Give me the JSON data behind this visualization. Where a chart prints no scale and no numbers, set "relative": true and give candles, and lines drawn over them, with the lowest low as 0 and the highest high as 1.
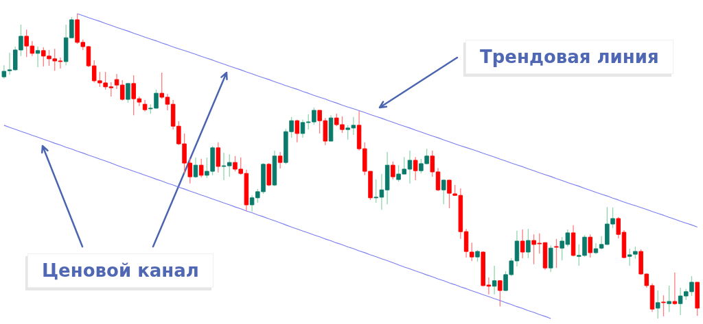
{
  "chart_data": {
    "type": "candlestick",
    "relative": true,
    "categories": [
      null,
      null,
      null,
      null,
      null,
      null,
      null,
      null,
      null,
      null,
      null,
      null,
      null,
      null,
      null,
      null,
      null,
      null,
      null,
      null,
      null,
      null,
      null,
      null,
      null,
      null,
      null,
      null,
      null,
      null,
      null,
      null,
      null,
      null,
      null,
      null,
      null,
      null,
      null,
      null,
      null,
      null,
      null,
      null,
      null,
      null,
      null,
      null,
      null,
      null,
      null,
      null,
      null,
      null,
      null,
      null,
      null,
      null,
      null,
      null,
      null,
      null,
      null,
      null,
      null,
      null,
      null,
      null,
      null,
      null,
      null,
      null,
      null,
      null,
      null,
      null,
      null,
      null,
      null,
      null,
      null,
      null,
      null,
      null,
      null,
      null,
      null,
      null,
      null,
      null,
      null,
      null,
      null,
      null,
      null,
      null,
      null,
      null,
      null,
      null,
      null,
      null,
      null,
      null,
      null,
      null,
      null,
      null,
      null,
      null,
      null,
      null,
      null,
      null,
      null,
      null,
      null,
      null,
      null,
      null,
      null,
      null,
      null,
      null
    ],
    "ohlc": [
      [
        0.793,
        0.831,
        0.787,
        0.811
      ],
      [
        0.813,
        0.872,
        0.8,
        0.816
      ],
      [
        0.816,
        0.892,
        0.813,
        0.881
      ],
      [
        0.881,
        0.964,
        0.861,
        0.926
      ],
      [
        0.926,
        0.948,
        0.858,
        0.894
      ],
      [
        0.894,
        0.91,
        0.861,
        0.87
      ],
      [
        0.87,
        0.892,
        0.825,
        0.879
      ],
      [
        0.879,
        0.89,
        0.827,
        0.861
      ],
      [
        0.861,
        0.881,
        0.829,
        0.852
      ],
      [
        0.852,
        0.885,
        0.813,
        0.845
      ],
      [
        0.845,
        0.856,
        0.82,
        0.843
      ],
      [
        0.843,
        0.964,
        0.831,
        0.921
      ],
      [
        0.921,
        0.989,
        0.921,
        0.98
      ],
      [
        0.98,
        1,
        0.901,
        0.906
      ],
      [
        0.906,
        0.915,
        0.881,
        0.892
      ],
      [
        0.892,
        0.894,
        0.825,
        0.829
      ],
      [
        0.829,
        0.847,
        0.775,
        0.78
      ],
      [
        0.78,
        0.809,
        0.76,
        0.773
      ],
      [
        0.773,
        0.809,
        0.751,
        0.76
      ],
      [
        0.76,
        0.775,
        0.728,
        0.757
      ],
      [
        0.784,
        0.802,
        0.753,
        0.766
      ],
      [
        0.766,
        0.782,
        0.715,
        0.719
      ],
      [
        0.719,
        0.771,
        0.708,
        0.771
      ],
      [
        0.771,
        0.798,
        0.667,
        0.721
      ],
      [
        0.721,
        0.728,
        0.697,
        0.71
      ],
      [
        0.703,
        0.717,
        0.679,
        0.685
      ],
      [
        0.688,
        0.703,
        0.672,
        0.69
      ],
      [
        0.69,
        0.751,
        0.69,
        0.739
      ],
      [
        0.739,
        0.807,
        0.721,
        0.726
      ],
      [
        0.726,
        0.737,
        0.683,
        0.703
      ],
      [
        0.703,
        0.717,
        0.62,
        0.631
      ],
      [
        0.631,
        0.647,
        0.569,
        0.573
      ],
      [
        0.573,
        0.607,
        0.476,
        0.51
      ],
      [
        0.51,
        0.524,
        0.443,
        0.465
      ],
      [
        0.465,
        0.528,
        0.461,
        0.503
      ],
      [
        0.503,
        0.524,
        0.463,
        0.47
      ],
      [
        0.47,
        0.528,
        0.461,
        0.483
      ],
      [
        0.483,
        0.566,
        0.47,
        0.56
      ],
      [
        0.56,
        0.578,
        0.479,
        0.499
      ],
      [
        0.499,
        0.544,
        0.454,
        0.501
      ],
      [
        0.501,
        0.539,
        0.465,
        0.512
      ],
      [
        0.512,
        0.533,
        0.483,
        0.49
      ],
      [
        0.49,
        0.528,
        0.472,
        0.476
      ],
      [
        0.476,
        0.488,
        0.353,
        0.373
      ],
      [
        0.373,
        0.404,
        0.351,
        0.396
      ],
      [
        0.396,
        0.425,
        0.38,
        0.416
      ],
      [
        0.416,
        0.51,
        0.409,
        0.506
      ],
      [
        0.506,
        0.51,
        0.434,
        0.438
      ],
      [
        0.438,
        0.551,
        0.434,
        0.533
      ],
      [
        0.533,
        0.546,
        0.492,
        0.512
      ],
      [
        0.512,
        0.622,
        0.506,
        0.613
      ],
      [
        0.613,
        0.661,
        0.593,
        0.649
      ],
      [
        0.649,
        0.652,
        0.578,
        0.607
      ],
      [
        0.607,
        0.652,
        0.593,
        0.643
      ],
      [
        0.643,
        0.67,
        0.62,
        0.645
      ],
      [
        0.645,
        0.692,
        0.636,
        0.683
      ],
      [
        0.683,
        0.683,
        0.607,
        0.649
      ],
      [
        0.649,
        0.658,
        0.569,
        0.582
      ],
      [
        0.582,
        0.667,
        0.582,
        0.658
      ],
      [
        0.658,
        0.672,
        0.631,
        0.636
      ],
      [
        0.636,
        0.663,
        0.609,
        0.62
      ],
      [
        0.62,
        0.634,
        0.587,
        0.625
      ],
      [
        0.625,
        0.661,
        0.602,
        0.634
      ],
      [
        0.634,
        0.681,
        0.551,
        0.557
      ],
      [
        0.557,
        0.578,
        0.47,
        0.483
      ],
      [
        0.483,
        0.483,
        0.389,
        0.396
      ],
      [
        0.396,
        0.456,
        0.38,
        0.398
      ],
      [
        0.398,
        0.474,
        0.357,
        0.422
      ],
      [
        0.422,
        0.546,
        0.375,
        0.503
      ],
      [
        0.503,
        0.515,
        0.456,
        0.465
      ],
      [
        0.456,
        0.503,
        0.449,
        0.474
      ],
      [
        0.474,
        0.53,
        0.474,
        0.49
      ],
      [
        0.49,
        0.551,
        0.443,
        0.519
      ],
      [
        0.519,
        0.53,
        0.454,
        0.485
      ],
      [
        0.485,
        0.524,
        0.476,
        0.508
      ],
      [
        0.508,
        0.557,
        0.506,
        0.533
      ],
      [
        0.533,
        0.551,
        0.465,
        0.481
      ],
      [
        0.481,
        0.494,
        0.418,
        0.422
      ],
      [
        0.422,
        0.456,
        0.375,
        0.454
      ],
      [
        0.454,
        0.454,
        0.362,
        0.411
      ],
      [
        0.409,
        0.438,
        0.404,
        0.404
      ],
      [
        0.404,
        0.427,
        0.261,
        0.285
      ],
      [
        0.285,
        0.294,
        0.2,
        0.22
      ],
      [
        0.218,
        0.249,
        0.189,
        0.202
      ],
      [
        0.202,
        0.225,
        0.187,
        0.22
      ],
      [
        0.218,
        0.22,
        0.106,
        0.108
      ],
      [
        0.11,
        0.135,
        0.079,
        0.106
      ],
      [
        0.106,
        0.173,
        0.079,
        0.124
      ],
      [
        0.124,
        0.126,
        0.04,
        0.092
      ],
      [
        0.092,
        0.155,
        0.09,
        0.144
      ],
      [
        0.144,
        0.198,
        0.139,
        0.189
      ],
      [
        0.189,
        0.288,
        0.171,
        0.254
      ],
      [
        0.254,
        0.292,
        0.198,
        0.218
      ],
      [
        0.218,
        0.294,
        0.198,
        0.256
      ],
      [
        0.256,
        0.276,
        0.178,
        0.243
      ],
      [
        0.247,
        0.279,
        0.213,
        0.245
      ],
      [
        0.249,
        0.249,
        0.16,
        0.166
      ],
      [
        0.166,
        0.24,
        0.153,
        0.231
      ],
      [
        0.236,
        0.261,
        0.166,
        0.234
      ],
      [
        0.231,
        0.267,
        0.191,
        0.254
      ],
      [
        0.243,
        0.292,
        0.236,
        0.281
      ],
      [
        0.281,
        0.306,
        0.204,
        0.207
      ],
      [
        0.204,
        0.243,
        0.173,
        0.207
      ],
      [
        0.207,
        0.274,
        0.202,
        0.267
      ],
      [
        0.267,
        0.276,
        0.2,
        0.216
      ],
      [
        0.216,
        0.247,
        0.211,
        0.229
      ],
      [
        0.231,
        0.27,
        0.227,
        0.243
      ],
      [
        0.243,
        0.366,
        0.243,
        0.31
      ],
      [
        0.31,
        0.364,
        0.297,
        0.328
      ],
      [
        0.328,
        0.333,
        0.263,
        0.276
      ],
      [
        0.283,
        0.29,
        0.198,
        0.2
      ],
      [
        0.204,
        0.229,
        0.173,
        0.209
      ],
      [
        0.211,
        0.236,
        0.196,
        0.22
      ],
      [
        0.22,
        0.227,
        0.144,
        0.146
      ],
      [
        0.146,
        0.148,
        0.101,
        0.108
      ],
      [
        0.108,
        0.115,
        0.022,
        0.031
      ],
      [
        0.034,
        0.092,
        0,
        0.052
      ],
      [
        0.054,
        0.076,
        0.007,
        0.052
      ],
      [
        0.049,
        0.108,
        0.022,
        0.056
      ],
      [
        0.056,
        0.151,
        0.045,
        0.049
      ],
      [
        0.049,
        0.101,
        0.011,
        0.074
      ],
      [
        0.074,
        0.097,
        0.061,
        0.088
      ],
      [
        0.088,
        0.139,
        0.074,
        0.119
      ],
      [
        0.119,
        0.119,
        0.009,
        0.034
      ]
    ],
    "series": [
      {
        "type": "line",
        "color": "#7a7cf2",
        "values": [
          null,
          null,
          null,
          null,
          null,
          null,
          null,
          null,
          null,
          null,
          null,
          null,
          null,
          1.0,
          0.994,
          0.987,
          0.981,
          0.975,
          0.968,
          0.962,
          0.955,
          0.949,
          0.943,
          0.936,
          0.93,
          0.923,
          0.917,
          0.911,
          0.904,
          0.898,
          0.891,
          0.885,
          0.879,
          0.873,
          0.867,
          0.86,
          0.854,
          0.848,
          0.841,
          0.835,
          0.828,
          0.822,
          0.816,
          0.809,
          0.803,
          0.796,
          0.79,
          0.784,
          0.777,
          0.771,
          0.764,
          0.758,
          0.752,
          0.745,
          0.739,
          0.732,
          0.726,
          0.72,
          0.713,
          0.707,
          0.7,
          0.694,
          0.688,
          0.682,
          0.676,
          0.669,
          0.663,
          0.657,
          0.65,
          0.644,
          0.637,
          0.631,
          0.625,
          0.618,
          0.612,
          0.605,
          0.599,
          0.593,
          0.586,
          0.58,
          0.573,
          0.567,
          0.561,
          0.555,
          0.549,
          0.542,
          0.536,
          0.53,
          0.523,
          0.517,
          0.51,
          0.504,
          0.498,
          0.491,
          0.485,
          0.478,
          0.472,
          0.466,
          0.459,
          0.453,
          0.446,
          0.44,
          0.434,
          0.427,
          0.421,
          0.414,
          0.408,
          0.402,
          0.395,
          0.389,
          0.382,
          0.376,
          0.37,
          0.364,
          0.358,
          0.351,
          0.345,
          0.339,
          0.332,
          0.326,
          0.319,
          0.313,
          0.307,
          0.3
        ]
      },
      {
        "type": "line",
        "color": "#7a7cf2",
        "values": [
          0.634,
          0.627,
          0.621,
          0.614,
          0.608,
          0.601,
          0.595,
          0.588,
          0.582,
          0.575,
          0.569,
          0.562,
          0.556,
          0.549,
          0.543,
          0.536,
          0.53,
          0.523,
          0.517,
          0.51,
          0.503,
          0.496,
          0.49,
          0.483,
          0.477,
          0.47,
          0.464,
          0.457,
          0.451,
          0.444,
          0.438,
          0.431,
          0.425,
          0.418,
          0.412,
          0.405,
          0.399,
          0.392,
          0.386,
          0.379,
          0.373,
          0.366,
          0.36,
          0.353,
          0.347,
          0.34,
          0.334,
          0.327,
          0.321,
          0.314,
          0.307,
          0.3,
          0.294,
          0.287,
          0.281,
          0.274,
          0.268,
          0.261,
          0.255,
          0.248,
          0.242,
          0.235,
          0.229,
          0.222,
          0.216,
          0.209,
          0.203,
          0.196,
          0.19,
          0.183,
          0.176,
          0.169,
          0.163,
          0.156,
          0.15,
          0.143,
          0.137,
          0.13,
          0.124,
          0.117,
          0.111,
          0.104,
          0.098,
          0.091,
          0.085,
          0.078,
          0.072,
          0.065,
          0.059,
          0.052,
          0.046,
          0.039,
          0.033,
          0.026,
          0.02,
          0.013,
          0.007,
          0,
          null,
          null,
          null,
          null,
          null,
          null,
          null,
          null,
          null,
          null,
          null,
          null,
          null,
          null,
          null,
          null,
          null,
          null,
          null,
          null,
          null,
          null,
          null,
          null,
          null,
          null
        ]
      }
    ],
    "annotations": [
      "Трендовая линия",
      "Ценовой канал"
    ]
  }
}
